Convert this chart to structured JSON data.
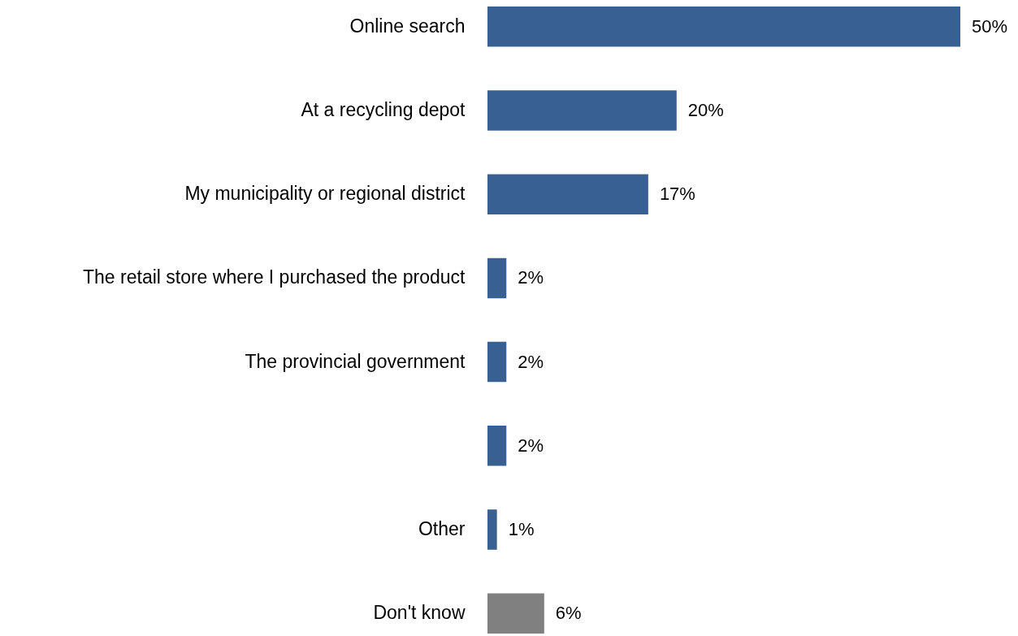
{
  "chart_data": {
    "type": "bar",
    "orientation": "horizontal",
    "categories": [
      "Online search",
      "At a recycling depot",
      "My municipality or regional district",
      "The retail store where I purchased the product",
      "The provincial government",
      null,
      "Other",
      "Don't know"
    ],
    "values": [
      50,
      20,
      17,
      2,
      2,
      2,
      1,
      6
    ],
    "colors": [
      "#386192",
      "#386192",
      "#386192",
      "#386192",
      "#386192",
      "#386192",
      "#386192",
      "#808080"
    ],
    "value_labels": [
      "50%",
      "20%",
      "17%",
      "2%",
      "2%",
      "2%",
      "1%",
      "6%"
    ]
  }
}
